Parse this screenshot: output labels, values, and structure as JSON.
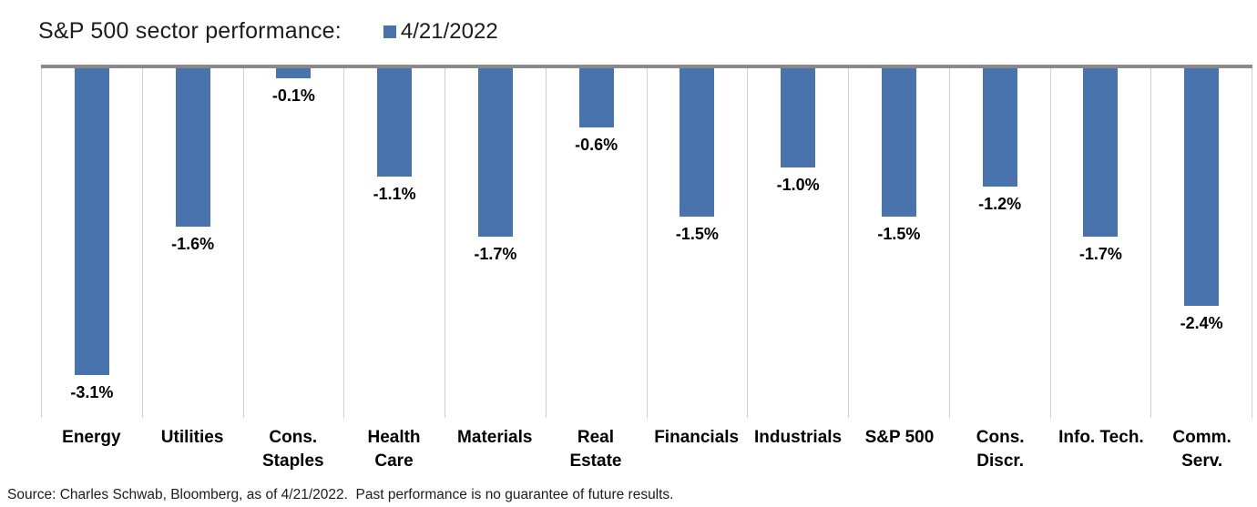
{
  "header": {
    "title": "S&P 500 sector performance:",
    "legend": {
      "label": "4/21/2022",
      "swatch_icon": "legend-square"
    }
  },
  "chart_data": {
    "type": "bar",
    "title": "S&P 500 sector performance:",
    "legend_entries": [
      "4/21/2022"
    ],
    "legend_position": "top",
    "categories": [
      "Energy",
      "Utilities",
      "Cons. Staples",
      "Health Care",
      "Materials",
      "Real Estate",
      "Financials",
      "Industrials",
      "S&P 500",
      "Cons. Discr.",
      "Info. Tech.",
      "Comm. Serv."
    ],
    "values": [
      -3.1,
      -1.6,
      -0.1,
      -1.1,
      -1.7,
      -0.6,
      -1.5,
      -1.0,
      -1.5,
      -1.2,
      -1.7,
      -2.4
    ],
    "value_labels": [
      "-3.1%",
      "-1.6%",
      "-0.1%",
      "-1.1%",
      "-1.7%",
      "-0.6%",
      "-1.5%",
      "-1.0%",
      "-1.5%",
      "-1.2%",
      "-1.7%",
      "-2.4%"
    ],
    "unit": "%",
    "xlabel": "",
    "ylabel": "",
    "ylim": [
      -3.5,
      0
    ],
    "grid": "vertical-column-separators-only",
    "axis_tick_labels_shown": false,
    "bar_color": "#4873AC",
    "baseline_color": "#898989",
    "gridline_color": "#cfcfcf"
  },
  "footer": {
    "source": "Source: Charles Schwab, Bloomberg, as of 4/21/2022.  Past performance is no guarantee of future results."
  }
}
